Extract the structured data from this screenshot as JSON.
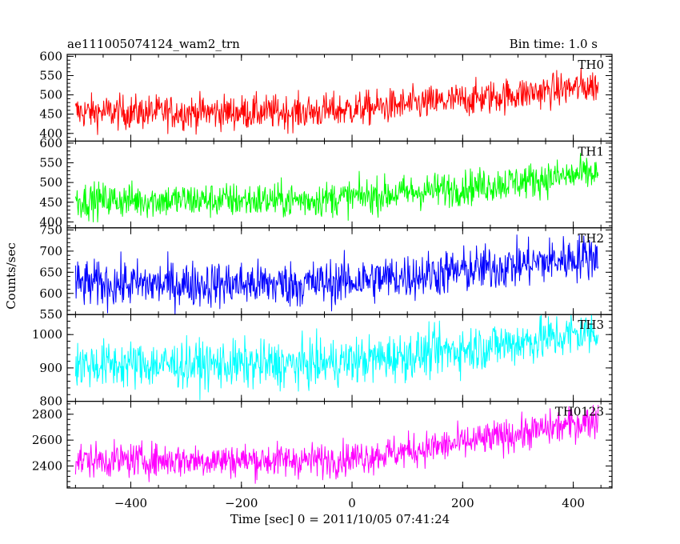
{
  "header": {
    "title": "ae111005074124_wam2_trn",
    "bin_time": "Bin time: 1.0 s"
  },
  "chart_data": {
    "type": "line",
    "xlabel": "Time [sec] 0 = 2011/10/05 07:41:24",
    "ylabel": "Counts/sec",
    "xlim": [
      -515,
      470
    ],
    "x_ticks": [
      -400,
      -200,
      0,
      200,
      400
    ],
    "x_tick_labels": [
      "−400",
      "−200",
      "0",
      "200",
      "400"
    ],
    "x_range": [
      -500,
      445
    ],
    "grid": false,
    "panels": [
      {
        "name": "TH0",
        "color": "#ff0000",
        "ylim": [
          380,
          605
        ],
        "ticks": [
          400,
          450,
          500,
          550,
          600
        ],
        "tick_labels": [
          "400",
          "450",
          "500",
          "550",
          "600"
        ],
        "start_mean": 455,
        "end_mean": 525,
        "noise": 22,
        "rise_start": -100
      },
      {
        "name": "TH1",
        "color": "#00ff00",
        "ylim": [
          385,
          605
        ],
        "ticks": [
          400,
          450,
          500,
          550,
          600
        ],
        "tick_labels": [
          "400",
          "450",
          "500",
          "550",
          "600"
        ],
        "start_mean": 455,
        "end_mean": 525,
        "noise": 22,
        "rise_start": -100
      },
      {
        "name": "TH2",
        "color": "#0000ff",
        "ylim": [
          550,
          755
        ],
        "ticks": [
          550,
          600,
          650,
          700,
          750
        ],
        "tick_labels": [
          "550",
          "600",
          "650",
          "700",
          "750"
        ],
        "start_mean": 622,
        "end_mean": 690,
        "noise": 27,
        "rise_start": -100
      },
      {
        "name": "TH3",
        "color": "#00ffff",
        "ylim": [
          800,
          1060
        ],
        "ticks": [
          800,
          900,
          1000
        ],
        "tick_labels": [
          "800",
          "900",
          "1000"
        ],
        "start_mean": 910,
        "end_mean": 1010,
        "noise": 35,
        "rise_start": -100
      },
      {
        "name": "TH0123",
        "color": "#ff00ff",
        "ylim": [
          2230,
          2900
        ],
        "ticks": [
          2400,
          2600,
          2800
        ],
        "tick_labels": [
          "2400",
          "2600",
          "2800"
        ],
        "start_mean": 2445,
        "end_mean": 2760,
        "noise": 65,
        "rise_start": -60
      }
    ]
  }
}
